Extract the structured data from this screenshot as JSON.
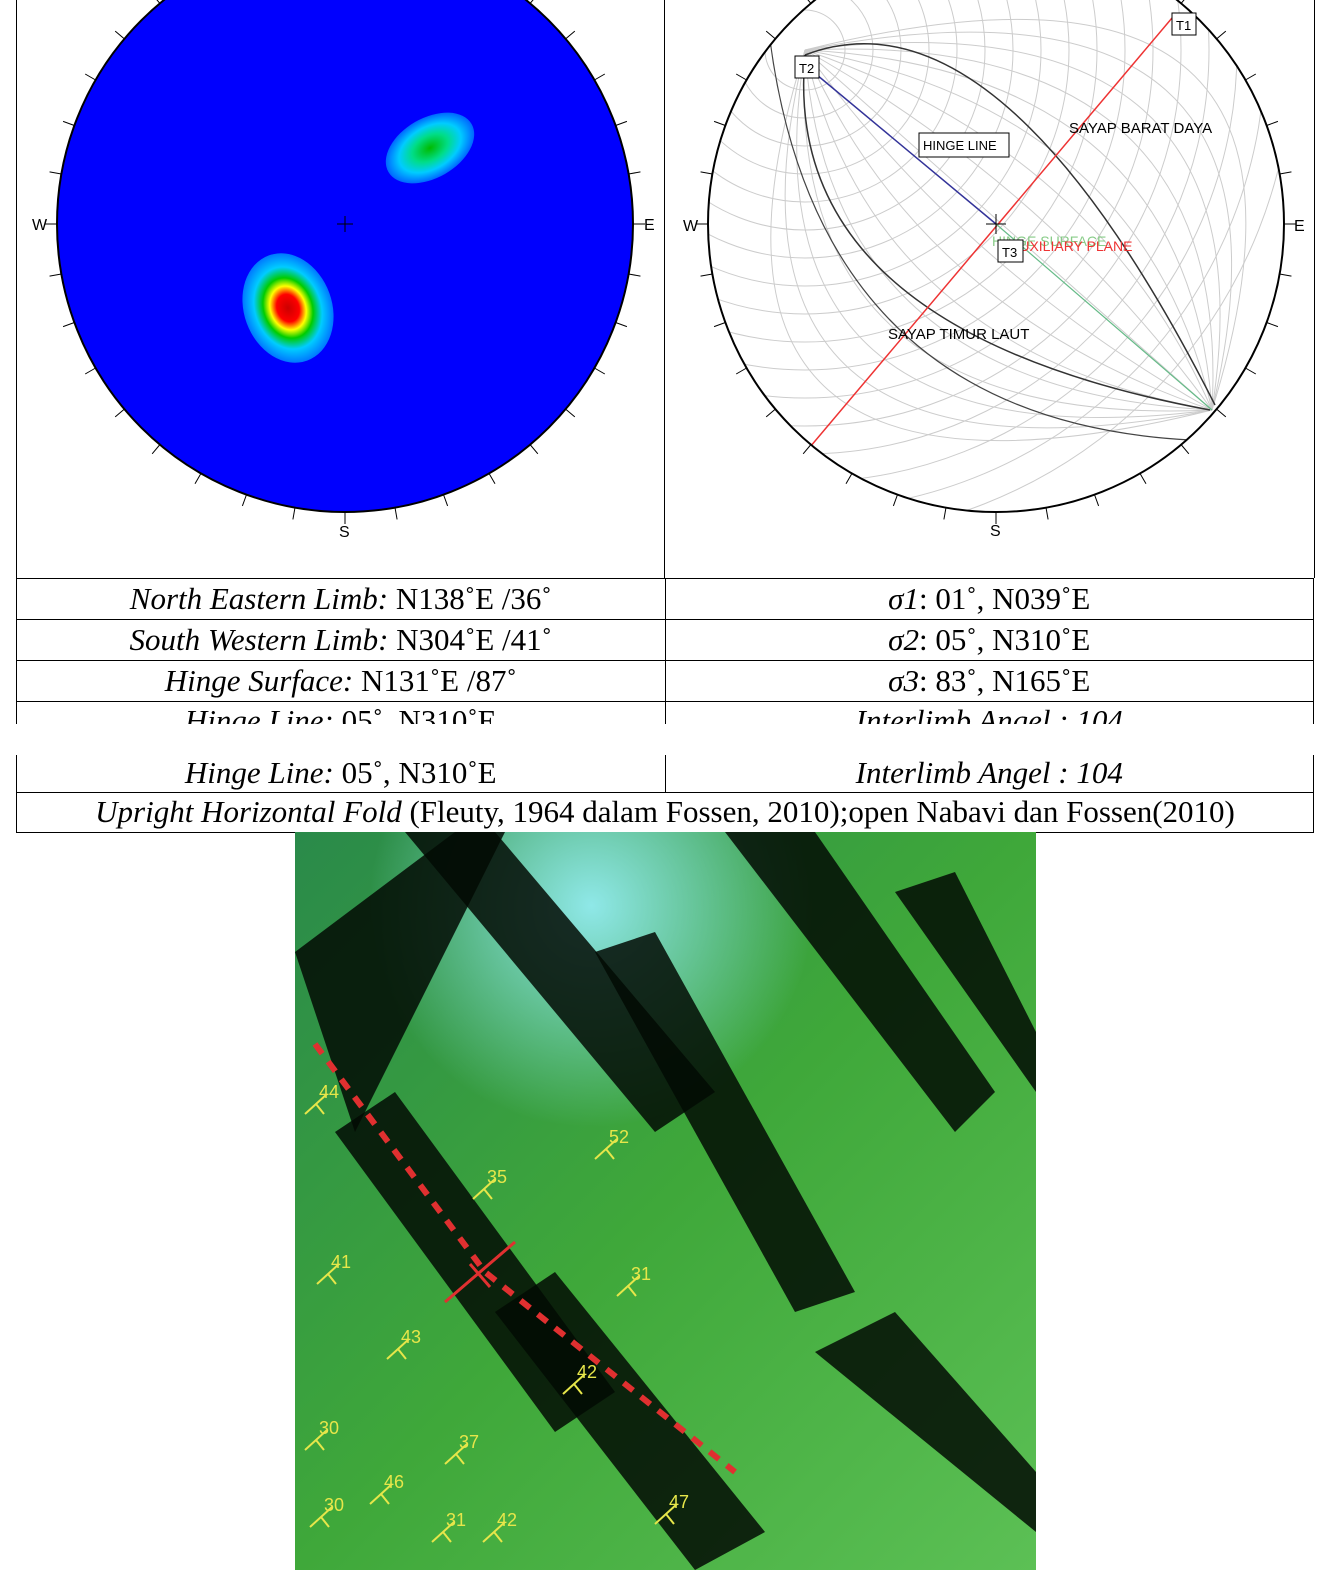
{
  "stereonets": {
    "left": {
      "labels": {
        "west": "W",
        "east": "E",
        "south": "S"
      }
    },
    "right": {
      "labels": {
        "west": "W",
        "east": "E",
        "south": "S"
      },
      "annotations": {
        "t1": "T1",
        "t2": "T2",
        "t3": "T3",
        "hinge_line": "HINGE LINE",
        "sw_limb": "SAYAP BARAT DAYA",
        "ne_limb": "SAYAP TIMUR LAUT",
        "hinge_surface": "HINGE SURFACE",
        "auxiliary_plane": "AUXILIARY PLANE"
      }
    }
  },
  "table": {
    "rows": [
      [
        {
          "term": "North Eastern Limb:",
          "value": "N138˚E /36˚"
        },
        {
          "term": "σ1",
          "value": ": 01˚, N039˚E"
        }
      ],
      [
        {
          "term": "South Western Limb:",
          "value": "N304˚E /41˚"
        },
        {
          "term": "σ2",
          "value": ": 05˚, N310˚E"
        }
      ],
      [
        {
          "term": "Hinge Surface:",
          "value": "N131˚E /87˚"
        },
        {
          "term": "σ3",
          "value": ": 83˚, N165˚E"
        }
      ],
      [
        {
          "term": "Hinge Line:",
          "value": "05˚, N310˚E"
        },
        {
          "term": "Interlimb Angel : 104"
        }
      ]
    ],
    "footer": {
      "term": "Upright Horizontal Fold",
      "value": "(Fleuty, 1964 dalam Fossen, 2010);open Nabavi dan Fossen(2010)"
    }
  },
  "map": {
    "dip_labels": [
      "44",
      "52",
      "35",
      "41",
      "31",
      "43",
      "42",
      "30",
      "37",
      "46",
      "30",
      "31",
      "42",
      "47"
    ]
  }
}
